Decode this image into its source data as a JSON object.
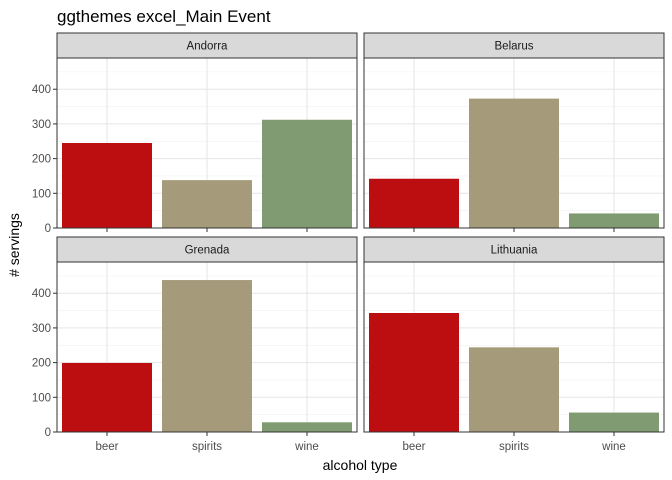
{
  "chart_data": {
    "type": "bar",
    "title": "ggthemes excel_Main Event",
    "xlabel": "alcohol type",
    "ylabel": "# servings",
    "categories": [
      "beer",
      "spirits",
      "wine"
    ],
    "ylim": [
      0,
      490
    ],
    "yticks": [
      0,
      100,
      200,
      300,
      400
    ],
    "grid": true,
    "colors": {
      "beer": "#bc0d10",
      "spirits": "#a59b7b",
      "wine": "#809b72"
    },
    "strip_fill": "#d9d9d9",
    "facets": [
      {
        "name": "Andorra",
        "values": [
          245,
          138,
          312
        ]
      },
      {
        "name": "Belarus",
        "values": [
          142,
          373,
          42
        ]
      },
      {
        "name": "Grenada",
        "values": [
          199,
          438,
          28
        ]
      },
      {
        "name": "Lithuania",
        "values": [
          343,
          244,
          56
        ]
      }
    ]
  }
}
